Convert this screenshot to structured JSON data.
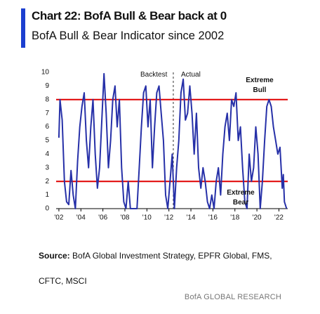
{
  "chart_data": {
    "type": "line",
    "title": "Chart 22: BofA Bull & Bear back at 0",
    "subtitle": "BofA Bull & Bear Indicator since 2002",
    "x": [
      2002.0,
      2002.1,
      2002.3,
      2002.5,
      2002.7,
      2002.9,
      2003.1,
      2003.3,
      2003.5,
      2003.7,
      2003.9,
      2004.1,
      2004.3,
      2004.5,
      2004.7,
      2004.9,
      2005.1,
      2005.3,
      2005.5,
      2005.7,
      2005.9,
      2006.1,
      2006.3,
      2006.5,
      2006.7,
      2006.9,
      2007.1,
      2007.3,
      2007.5,
      2007.7,
      2007.9,
      2008.1,
      2008.3,
      2008.5,
      2008.7,
      2008.9,
      2009.1,
      2009.3,
      2009.5,
      2009.7,
      2009.9,
      2010.1,
      2010.3,
      2010.5,
      2010.7,
      2010.9,
      2011.1,
      2011.3,
      2011.5,
      2011.7,
      2011.9,
      2012.1,
      2012.3,
      2012.5,
      2012.7,
      2012.9,
      2013.1,
      2013.3,
      2013.5,
      2013.7,
      2013.9,
      2014.1,
      2014.3,
      2014.5,
      2014.7,
      2014.9,
      2015.1,
      2015.3,
      2015.5,
      2015.7,
      2015.9,
      2016.1,
      2016.3,
      2016.5,
      2016.7,
      2016.9,
      2017.1,
      2017.3,
      2017.5,
      2017.7,
      2017.9,
      2018.1,
      2018.3,
      2018.5,
      2018.7,
      2018.9,
      2019.1,
      2019.3,
      2019.5,
      2019.7,
      2019.9,
      2020.1,
      2020.3,
      2020.5,
      2020.7,
      2020.9,
      2021.1,
      2021.3,
      2021.5,
      2021.7,
      2021.9,
      2022.1,
      2022.3,
      2022.4,
      2022.5,
      2022.7
    ],
    "series": [
      {
        "name": "BofA Bull & Bear Indicator",
        "color": "#2630a8",
        "values": [
          5.2,
          8,
          6.5,
          2,
          0.5,
          0.3,
          2.8,
          1,
          0,
          3.5,
          6,
          7.5,
          8.5,
          5,
          3,
          6,
          8,
          4,
          1.5,
          3,
          6.5,
          9.9,
          7,
          3,
          5,
          8,
          9,
          6,
          8,
          3,
          0.5,
          0,
          2,
          0,
          0,
          0,
          0,
          3,
          6,
          8.5,
          9,
          6,
          8,
          3,
          6,
          8.5,
          9,
          7,
          5,
          1,
          0,
          2,
          4,
          0,
          3,
          5,
          8.5,
          9.5,
          6.5,
          7,
          9,
          7,
          4,
          7,
          3,
          1.5,
          3,
          2,
          0.5,
          0,
          1,
          0,
          2,
          3,
          1,
          4,
          6,
          7,
          5,
          8,
          7.5,
          8.5,
          5,
          6,
          3,
          0.5,
          0,
          4,
          2,
          3,
          6,
          4,
          0,
          2,
          5,
          7.5,
          8,
          7.5,
          6,
          5,
          4,
          4.5,
          1.5,
          2.5,
          0.5,
          0
        ]
      }
    ],
    "xlim": [
      2001.75,
      2022.8
    ],
    "ylim": [
      0,
      10
    ],
    "xticks": [
      {
        "value": 2002,
        "label": "'02"
      },
      {
        "value": 2004,
        "label": "'04"
      },
      {
        "value": 2006,
        "label": "'06"
      },
      {
        "value": 2008,
        "label": "'08"
      },
      {
        "value": 2010,
        "label": "'10"
      },
      {
        "value": 2012,
        "label": "'12"
      },
      {
        "value": 2014,
        "label": "'14"
      },
      {
        "value": 2016,
        "label": "'16"
      },
      {
        "value": 2018,
        "label": "'18"
      },
      {
        "value": 2020,
        "label": "'20"
      },
      {
        "value": 2022,
        "label": "'22"
      }
    ],
    "yticks": [
      0,
      1,
      2,
      3,
      4,
      5,
      6,
      7,
      8,
      9,
      10
    ],
    "reference_lines": [
      8,
      2
    ],
    "reference_color": "#e00000",
    "divider_x": 2012.4,
    "annotations": [
      "Backtest",
      "Actual",
      "Extreme Bull",
      "Extreme Bear"
    ],
    "source_label": "Source:",
    "source_text": "BofA Global Investment Strategy, EPFR Global, FMS, CFTC, MSCI",
    "footer": "BofA GLOBAL RESEARCH"
  }
}
